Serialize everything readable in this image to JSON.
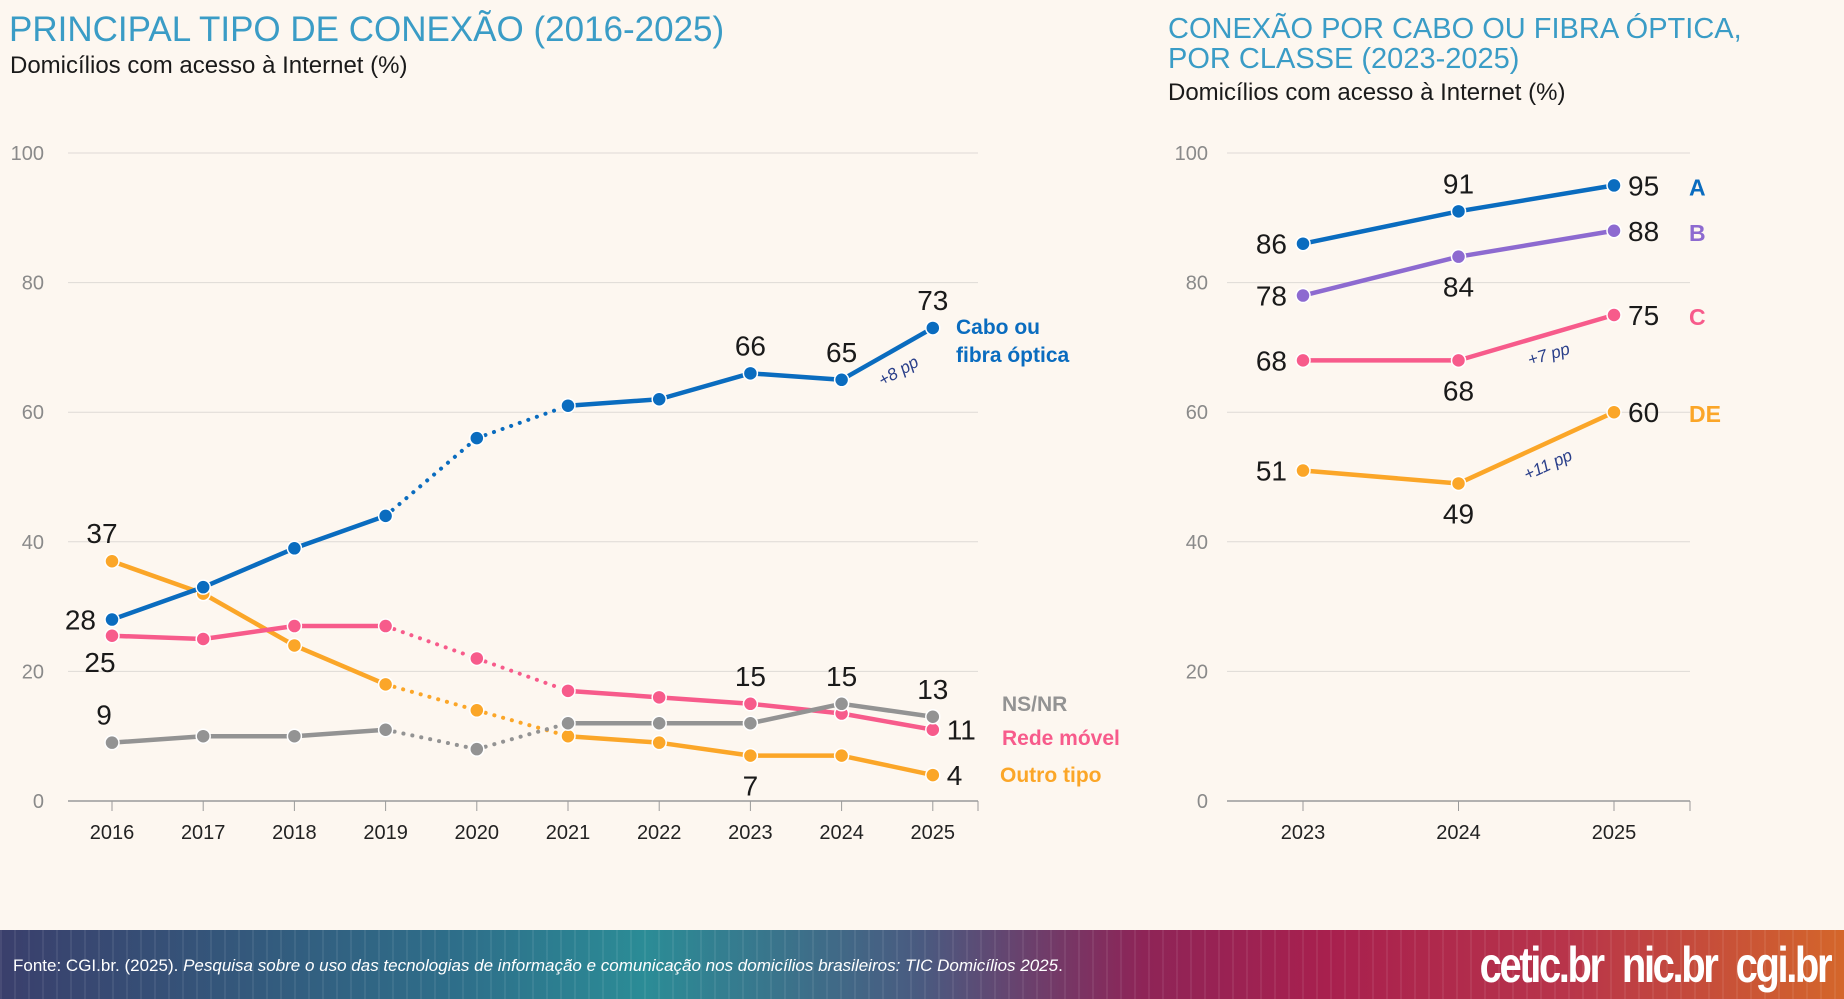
{
  "left": {
    "title": "PRINCIPAL TIPO DE CONEXÃO (2016-2025)",
    "subtitle": "Domicílios com acesso à Internet (%)"
  },
  "right": {
    "title_line1": "CONEXÃO POR CABO OU FIBRA ÓPTICA,",
    "title_line2": "POR CLASSE (2023-2025)",
    "subtitle": "Domicílios com acesso à Internet (%)"
  },
  "footer": {
    "source_prefix": "Fonte: CGI.br. (2025). ",
    "source_italic": "Pesquisa sobre o uso das tecnologias de informação e comunicação nos domicílios brasileiros: TIC Domicílios 2025",
    "source_suffix": ".",
    "logos": [
      "cetic.br",
      "nic.br",
      "cgi.br"
    ]
  },
  "chart_data": [
    {
      "type": "line",
      "title": "PRINCIPAL TIPO DE CONEXÃO (2016-2025)",
      "ylabel": "Domicílios com acesso à Internet (%)",
      "ylim": [
        0,
        100
      ],
      "yticks": [
        0,
        20,
        40,
        60,
        80,
        100
      ],
      "grid": true,
      "categories": [
        "2016",
        "2017",
        "2018",
        "2019",
        "2020",
        "2021",
        "2022",
        "2023",
        "2024",
        "2025"
      ],
      "dotted_between": [
        "2019",
        "2021"
      ],
      "series": [
        {
          "name": "Cabo ou fibra óptica",
          "name_lines": [
            "Cabo ou",
            "fibra óptica"
          ],
          "color": "#0a6cbf",
          "values": [
            28,
            33,
            39,
            44,
            56,
            61,
            62,
            66,
            65,
            73
          ],
          "labels": [
            {
              "i": 0,
              "text": "28",
              "pos": "left"
            },
            {
              "i": 7,
              "text": "66",
              "pos": "above"
            },
            {
              "i": 8,
              "text": "65",
              "pos": "above"
            },
            {
              "i": 9,
              "text": "73",
              "pos": "above"
            }
          ],
          "annotation": {
            "from": 8,
            "to": 9,
            "text": "+8 pp"
          }
        },
        {
          "name": "NS/NR",
          "name_lines": [
            "NS/NR"
          ],
          "color": "#939393",
          "values": [
            9,
            10,
            10,
            11,
            8,
            12,
            12,
            12,
            15,
            13
          ],
          "labels": [
            {
              "i": 0,
              "text": "9",
              "pos": "above"
            },
            {
              "i": 8,
              "text": "15",
              "pos": "above"
            },
            {
              "i": 9,
              "text": "13",
              "pos": "above"
            }
          ]
        },
        {
          "name": "Rede móvel",
          "name_lines": [
            "Rede móvel"
          ],
          "color": "#f75b8b",
          "values": [
            25.5,
            25,
            27,
            27,
            22,
            17,
            16,
            15,
            13.5,
            11
          ],
          "labels": [
            {
              "i": 0,
              "text": "25",
              "pos": "below"
            },
            {
              "i": 7,
              "text": "15",
              "pos": "above"
            },
            {
              "i": 9,
              "text": "11",
              "pos": "right"
            }
          ]
        },
        {
          "name": "Outro tipo",
          "name_lines": [
            "Outro tipo"
          ],
          "color": "#fba628",
          "values": [
            37,
            32,
            24,
            18,
            14,
            10,
            9,
            7,
            7,
            4
          ],
          "labels": [
            {
              "i": 0,
              "text": "37",
              "pos": "above"
            },
            {
              "i": 7,
              "text": "7",
              "pos": "below"
            },
            {
              "i": 9,
              "text": "4",
              "pos": "right"
            }
          ]
        }
      ]
    },
    {
      "type": "line",
      "title": "CONEXÃO POR CABO OU FIBRA ÓPTICA, POR CLASSE (2023-2025)",
      "ylabel": "Domicílios com acesso à Internet (%)",
      "ylim": [
        0,
        100
      ],
      "yticks": [
        0,
        20,
        40,
        60,
        80,
        100
      ],
      "grid": true,
      "categories": [
        "2023",
        "2024",
        "2025"
      ],
      "series": [
        {
          "name": "A",
          "color": "#0a6cbf",
          "values": [
            86,
            91,
            95
          ],
          "labels": [
            {
              "i": 0,
              "text": "86",
              "pos": "left"
            },
            {
              "i": 1,
              "text": "91",
              "pos": "above"
            },
            {
              "i": 2,
              "text": "95",
              "pos": "right"
            }
          ]
        },
        {
          "name": "B",
          "color": "#8d6ad0",
          "values": [
            78,
            84,
            88
          ],
          "labels": [
            {
              "i": 0,
              "text": "78",
              "pos": "left"
            },
            {
              "i": 1,
              "text": "84",
              "pos": "below"
            },
            {
              "i": 2,
              "text": "88",
              "pos": "right"
            }
          ]
        },
        {
          "name": "C",
          "color": "#f75b8b",
          "values": [
            68,
            68,
            75
          ],
          "labels": [
            {
              "i": 0,
              "text": "68",
              "pos": "left"
            },
            {
              "i": 1,
              "text": "68",
              "pos": "below"
            },
            {
              "i": 2,
              "text": "75",
              "pos": "right"
            }
          ],
          "annotation": {
            "from": 1,
            "to": 2,
            "text": "+7 pp"
          }
        },
        {
          "name": "DE",
          "color": "#fba628",
          "values": [
            51,
            49,
            60
          ],
          "labels": [
            {
              "i": 0,
              "text": "51",
              "pos": "left"
            },
            {
              "i": 1,
              "text": "49",
              "pos": "below"
            },
            {
              "i": 2,
              "text": "60",
              "pos": "right"
            }
          ],
          "annotation": {
            "from": 1,
            "to": 2,
            "text": "+11 pp"
          }
        }
      ]
    }
  ]
}
